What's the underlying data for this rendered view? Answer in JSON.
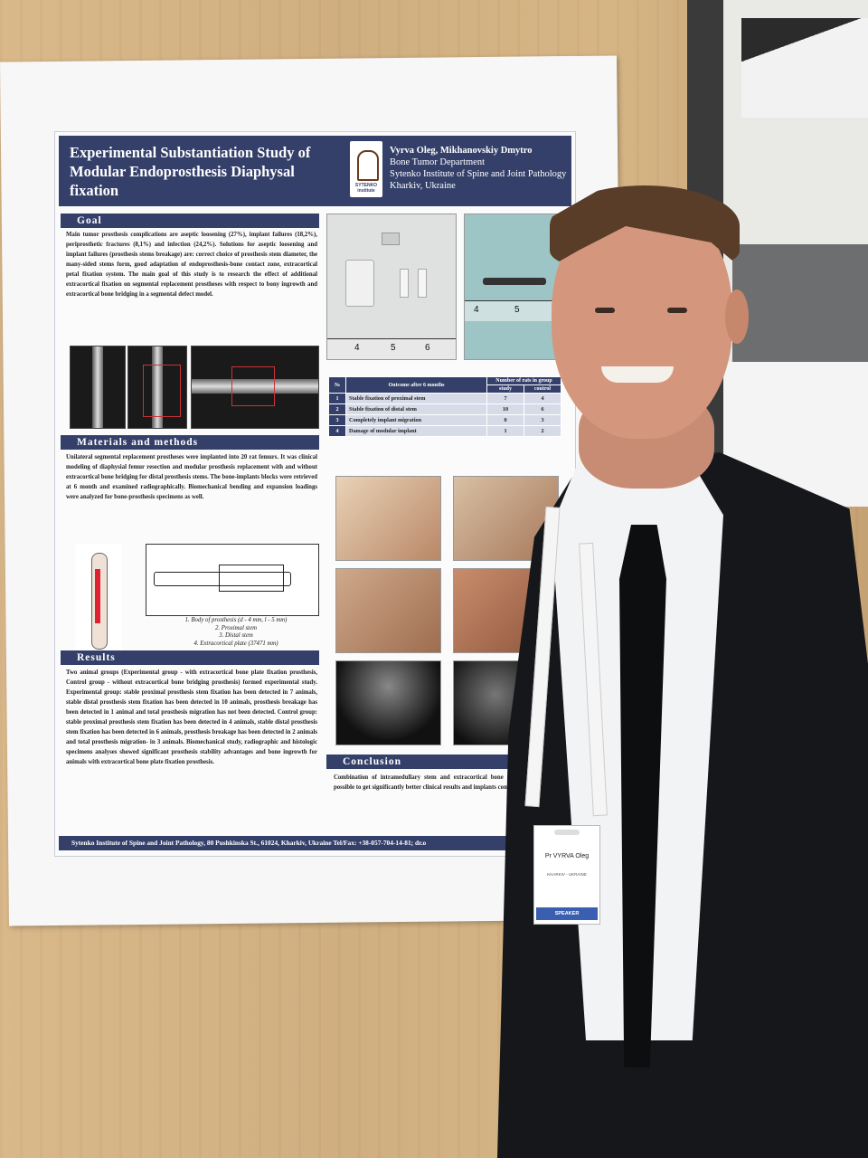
{
  "poster": {
    "title": "Experimental Substantiation Study of Modular Endoprosthesis Diaphysal fixation",
    "logo_text": "SYTENKO institute",
    "authors": "Vyrva Oleg, Mikhanovskiy Dmytro",
    "department": "Bone Tumor Department",
    "institute": "Sytenko Institute of Spine and Joint Pathology",
    "city": "Kharkiv, Ukraine",
    "sections": {
      "goal": {
        "heading": "Goal",
        "text": "Main tumor prosthesis complications are aseptic loosening (27%), implant failures (18,2%), periprosthetic fractures (8,1%) and infection (24,2%). Solutions for aseptic loosening and implant failures (prosthesis stems breakage) are: correct choice of prosthesis stem diameter, the many-sided stems form, good adaptation of endoprosthesis-bone contact zone, extracortical petal fixation system. The main goal of this study is to research the effect of additional extracortical fixation on segmental replacement prostheses with respect to bony ingrowth and extracortical bone bridging in a segmental defect model."
      },
      "methods": {
        "heading": "Materials and methods",
        "text": "Unilateral segmental replacement prostheses were implanted into 20 rat femurs. It was clinical modeling of diaphysial femur resection and modular prosthesis replacement with and without extracortical bone bridging for distal prosthesis stems. The bone-implants blocks were retrieved at 6 month and examined radiographically. Biomechanical bending and expansion loadings were analyzed for bone-prosthesis specimens as well."
      },
      "results": {
        "heading": "Results",
        "text": "Two animal groups (Experimental group - with extracortical bone plate fixation prosthesis, Control group - without extracortical bone bridging prosthesis) formed experimental study. Experimental group: stable proximal prosthesis stem fixation has been detected in 7 animals, stable distal prosthesis stem fixation has been detected in 10 animals, prosthesis breakage has been detected in 1 animal and total prosthesis migration has not been detected. Control group: stable proximal prosthesis stem fixation has been detected in 4 animals, stable distal prosthesis stem fixation has been detected in 6 animals, prosthesis breakage has been detected in 2 animals and total prosthesis migration- in 3 animals. Biomechanical study, radiographic and histologic specimens analyses showed significant prosthesis stability advantages and bone ingrowth for animals with extracortical bone plate fixation prosthesis."
      },
      "conclusion": {
        "heading": "Conclusion",
        "text": "Combination of intramedullary stem and extracortical bone plate fixation makes possible to get significantly better clinical results and implants complication level."
      }
    },
    "diagram_legend": [
      "1. Body of prosthesis (d - 4 mm, l - 5 mm)",
      "2. Proximal stem",
      "3. Distal stem",
      "4. Extracortical plate (37471 mm)"
    ],
    "ruler_marks": [
      "4",
      "5",
      "6"
    ],
    "ruler_marks_2": [
      "4",
      "5"
    ],
    "table": {
      "col_no": "№",
      "col_outcome": "Outcome after 6 months",
      "col_group": "Number of rats in group",
      "col_study": "study",
      "col_control": "control",
      "rows": [
        {
          "n": "1",
          "outcome": "Stable fixation of proximal stem",
          "study": "7",
          "control": "4"
        },
        {
          "n": "2",
          "outcome": "Stable fixation of distal stem",
          "study": "10",
          "control": "6"
        },
        {
          "n": "3",
          "outcome": "Completely implant migration",
          "study": "0",
          "control": "3"
        },
        {
          "n": "4",
          "outcome": "Damage of modular implant",
          "study": "1",
          "control": "2"
        }
      ]
    },
    "footer": "Sytenko Institute of Spine and Joint Pathology,   80 Pushkinska St., 61024, Kharkiv, Ukraine      Tel/Fax: +38-057-704-14-81; dr.o"
  },
  "badge": {
    "name": "Pr VYRVA Oleg",
    "country": "KHARKIV - UKRAINE",
    "role": "SPEAKER",
    "lanyard_text": "comeco"
  },
  "colors": {
    "poster_navy": "#34406a",
    "suit": "#16171a",
    "wall": "#d6b585"
  }
}
